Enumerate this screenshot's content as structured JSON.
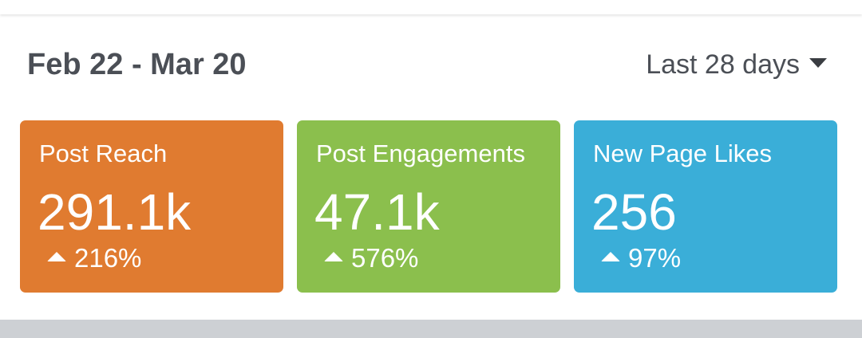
{
  "header": {
    "date_range": "Feb 22 - Mar 20",
    "period": "Last 28 days",
    "period_icon": "caret-down-icon"
  },
  "cards": [
    {
      "label": "Post Reach",
      "value": "291.1k",
      "change": "216%",
      "trend_icon": "up-arrow-icon",
      "color": "#e07b30"
    },
    {
      "label": "Post Engagements",
      "value": "47.1k",
      "change": "576%",
      "trend_icon": "up-arrow-icon",
      "color": "#8bbf4d"
    },
    {
      "label": "New Page Likes",
      "value": "256",
      "change": "97%",
      "trend_icon": "up-arrow-icon",
      "color": "#3aaed8"
    }
  ]
}
